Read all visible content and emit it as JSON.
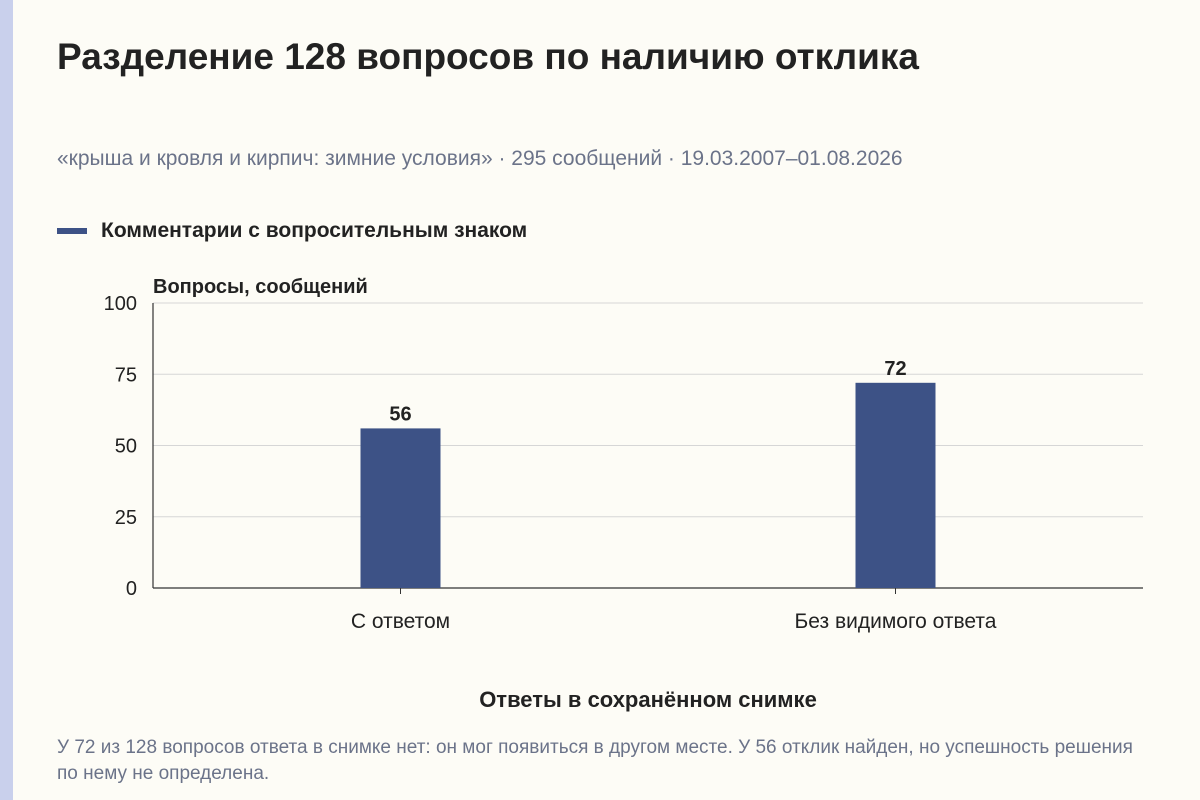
{
  "header": {
    "title": "Разделение 128 вопросов по наличию отклика",
    "subtitle": "«крыша и кровля и кирпич: зимние условия» · 295 сообщений · 19.03.2007–01.08.2026"
  },
  "legend": {
    "label": "Комментарии с вопросительным знаком"
  },
  "chart_data": {
    "type": "bar",
    "ylabel": "Вопросы, сообщений",
    "xlabel": "Ответы в сохранённом снимке",
    "categories": [
      "С ответом",
      "Без видимого ответа"
    ],
    "series": [
      {
        "name": "Комментарии с вопросительным знаком",
        "values": [
          56,
          72
        ]
      }
    ],
    "ylim": [
      0,
      100
    ],
    "yticks": [
      "0",
      "25",
      "50",
      "75",
      "100"
    ],
    "grid": true,
    "legend_position": "top-left",
    "bar_color": "#3d5286"
  },
  "footnote": "У 72 из 128 вопросов ответа в снимке нет: он мог появиться в другом месте. У 56 отклик найден, но успешность решения по нему не определена."
}
